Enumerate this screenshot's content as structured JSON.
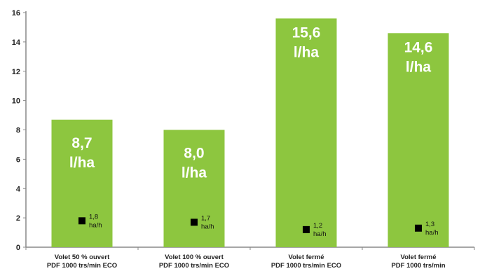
{
  "chart_data": {
    "type": "bar",
    "categories": [
      [
        "Volet 50 % ouvert",
        "PDF 1000 trs/min ECO"
      ],
      [
        "Volet 100 % ouvert",
        "PDF 1000 trs/min ECO"
      ],
      [
        "Volet fermé",
        "PDF 1000 trs/min ECO"
      ],
      [
        "Volet fermé",
        "PDF 1000 trs/min"
      ]
    ],
    "series": [
      {
        "values": [
          8.7,
          8.0,
          15.6,
          14.6
        ],
        "bar_labels": [
          [
            "8,7",
            "l/ha"
          ],
          [
            "8,0",
            "l/ha"
          ],
          [
            "15,6",
            "l/ha"
          ],
          [
            "14,6",
            "l/ha"
          ]
        ],
        "color": "#8dc63f",
        "mark": "bar"
      },
      {
        "values": [
          1.8,
          1.7,
          1.2,
          1.3
        ],
        "point_labels": [
          [
            "1,8",
            "ha/h"
          ],
          [
            "1,7",
            "ha/h"
          ],
          [
            "1,2",
            "ha/h"
          ],
          [
            "1,3",
            "ha/h"
          ]
        ],
        "color": "#000000",
        "mark": "square-marker"
      }
    ],
    "ylim": [
      0,
      16
    ],
    "yticks": [
      0,
      2,
      4,
      6,
      8,
      10,
      12,
      14,
      16
    ],
    "grid": false,
    "title": "",
    "xlabel": "",
    "ylabel": ""
  }
}
